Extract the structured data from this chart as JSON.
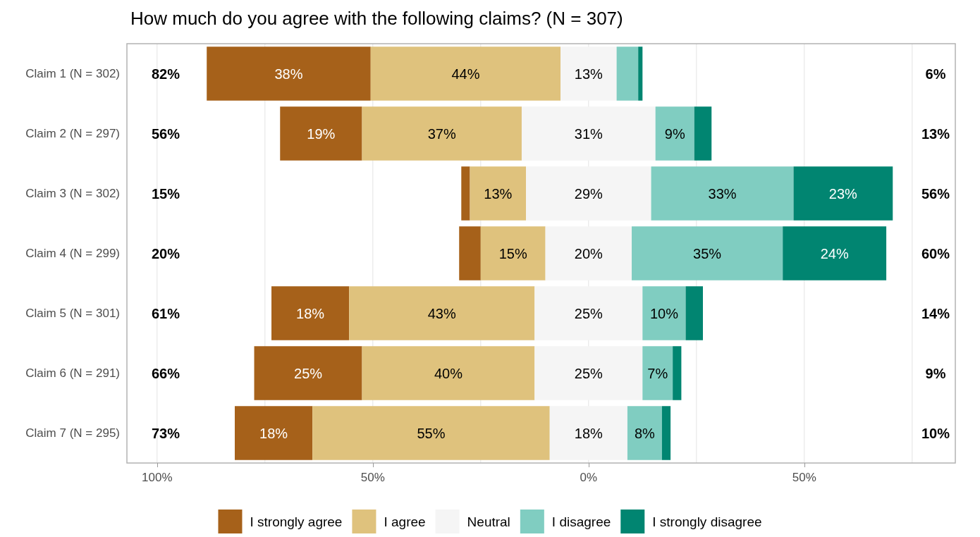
{
  "chart_data": {
    "type": "bar",
    "orientation": "horizontal",
    "title": "How much do you agree with the following claims? (N = 307)",
    "categories": [
      "Claim 1 (N = 302)",
      "Claim 2 (N = 297)",
      "Claim 3 (N = 302)",
      "Claim 4 (N = 299)",
      "Claim 5 (N = 301)",
      "Claim 6 (N = 291)",
      "Claim 7 (N = 295)"
    ],
    "series": [
      {
        "name": "I strongly agree",
        "color": "#a6611a",
        "values": [
          38,
          19,
          2,
          5,
          18,
          25,
          18
        ],
        "base": [
          -88.5,
          -71.5,
          -29.5,
          -30,
          -73.5,
          -77.5,
          -82
        ],
        "value_labels": [
          "38%",
          "19%",
          null,
          null,
          "18%",
          "25%",
          "18%"
        ]
      },
      {
        "name": "I agree",
        "color": "#dfc27d",
        "values": [
          44,
          37,
          13,
          15,
          43,
          40,
          55
        ],
        "base": [
          -50.5,
          -52.5,
          -27.5,
          -25,
          -55.5,
          -52.5,
          -64
        ],
        "value_labels": [
          "44%",
          "37%",
          "13%",
          "15%",
          "43%",
          "40%",
          "55%"
        ]
      },
      {
        "name": "Neutral",
        "color": "#f5f5f5",
        "values": [
          13,
          31,
          29,
          20,
          25,
          25,
          18
        ],
        "base": [
          -6.5,
          -15.5,
          -14.5,
          -10,
          -12.5,
          -12.5,
          -9
        ],
        "value_labels": [
          "13%",
          "31%",
          "29%",
          "20%",
          "25%",
          "25%",
          "18%"
        ]
      },
      {
        "name": "I disagree",
        "color": "#80cdc1",
        "values": [
          5,
          9,
          33,
          35,
          10,
          7,
          8
        ],
        "base": [
          6.5,
          15.5,
          14.5,
          10,
          12.5,
          12.5,
          9
        ],
        "value_labels": [
          null,
          "9%",
          "33%",
          "35%",
          "10%",
          "7%",
          "8%"
        ]
      },
      {
        "name": "I strongly disagree",
        "color": "#018571",
        "values": [
          1,
          4,
          23,
          24,
          4,
          2,
          2
        ],
        "base": [
          11.5,
          24.5,
          47.5,
          45,
          22.5,
          19.5,
          17
        ],
        "value_labels": [
          null,
          null,
          "23%",
          "24%",
          null,
          null,
          null
        ]
      }
    ],
    "xlim": [
      -107,
      85
    ],
    "xticks": [
      {
        "value": -100,
        "label": "100%"
      },
      {
        "value": -75,
        "label": null
      },
      {
        "value": -50,
        "label": "50%"
      },
      {
        "value": -25,
        "label": null
      },
      {
        "value": 0,
        "label": "0%"
      },
      {
        "value": 25,
        "label": null
      },
      {
        "value": 50,
        "label": "50%"
      },
      {
        "value": 75,
        "label": null
      }
    ],
    "grid": "x",
    "legend": "bottom",
    "annotations": [
      "82%",
      "56%",
      "15%",
      "20%",
      "61%",
      "66%",
      "73%",
      "6%",
      "13%",
      "56%",
      "60%",
      "14%",
      "9%",
      "10%"
    ]
  }
}
